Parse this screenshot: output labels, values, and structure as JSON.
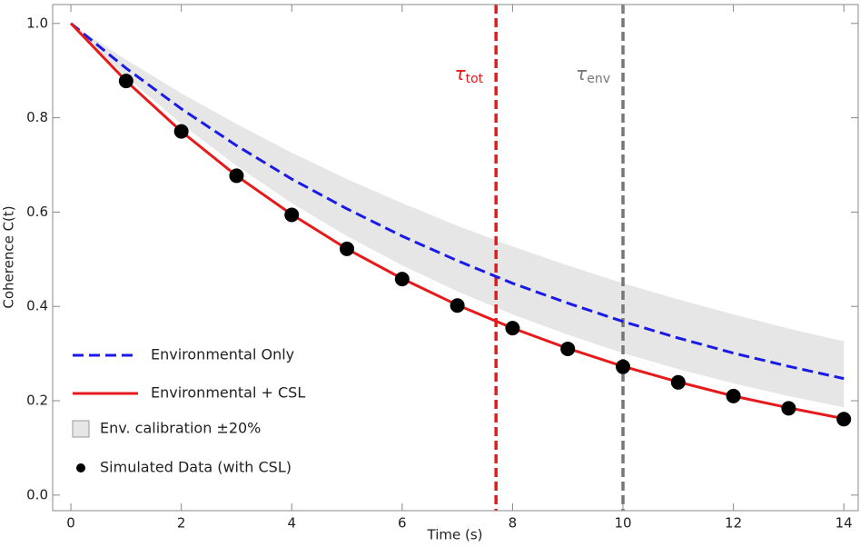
{
  "chart_data": {
    "type": "line",
    "xlabel": "Time (s)",
    "ylabel": "Coherence  C(t)",
    "x": [
      0,
      1,
      2,
      3,
      4,
      5,
      6,
      7,
      8,
      9,
      10,
      11,
      12,
      13,
      14
    ],
    "band": {
      "name": "Env. calibration ±20%",
      "color": "#e6e6e6",
      "upper": [
        1,
        0.923,
        0.852,
        0.787,
        0.726,
        0.67,
        0.619,
        0.571,
        0.527,
        0.487,
        0.449,
        0.415,
        0.383,
        0.353,
        0.326
      ],
      "lower": [
        1,
        0.887,
        0.787,
        0.698,
        0.619,
        0.549,
        0.487,
        0.432,
        0.383,
        0.34,
        0.301,
        0.267,
        0.237,
        0.21,
        0.186
      ]
    },
    "series": [
      {
        "name": "Environmental Only",
        "color": "#1a1ae6",
        "dashed": true,
        "values": [
          1,
          0.905,
          0.819,
          0.741,
          0.67,
          0.607,
          0.549,
          0.497,
          0.449,
          0.407,
          0.368,
          0.333,
          0.301,
          0.273,
          0.247
        ]
      },
      {
        "name": "Environmental + CSL",
        "color": "#e61a1a",
        "dashed": false,
        "values": [
          1,
          0.878,
          0.771,
          0.677,
          0.595,
          0.522,
          0.459,
          0.403,
          0.354,
          0.311,
          0.273,
          0.24,
          0.21,
          0.185,
          0.162
        ]
      }
    ],
    "points": {
      "name": "Simulated Data (with CSL)",
      "color": "#000000",
      "x": [
        1,
        2,
        3,
        4,
        5,
        6,
        7,
        8,
        9,
        10,
        11,
        12,
        13,
        14
      ],
      "values": [
        0.878,
        0.771,
        0.677,
        0.594,
        0.522,
        0.458,
        0.402,
        0.354,
        0.31,
        0.272,
        0.239,
        0.21,
        0.184,
        0.161
      ]
    },
    "vlines": [
      {
        "x": 7.7,
        "color": "#e61a1a",
        "symbol": "τ",
        "sub": "tot"
      },
      {
        "x": 10,
        "color": "#777777",
        "symbol": "τ",
        "sub": "env"
      }
    ],
    "xlim": [
      -0.33,
      14.26
    ],
    "ylim": [
      -0.033,
      1.04
    ],
    "xticks": [
      0,
      2,
      4,
      6,
      8,
      10,
      12,
      14
    ],
    "yticks": [
      {
        "value": 0,
        "label": "0.0"
      },
      0.2,
      0.4,
      0.6,
      0.8,
      {
        "value": 1,
        "label": "1.0"
      }
    ],
    "legend": "lower left"
  }
}
